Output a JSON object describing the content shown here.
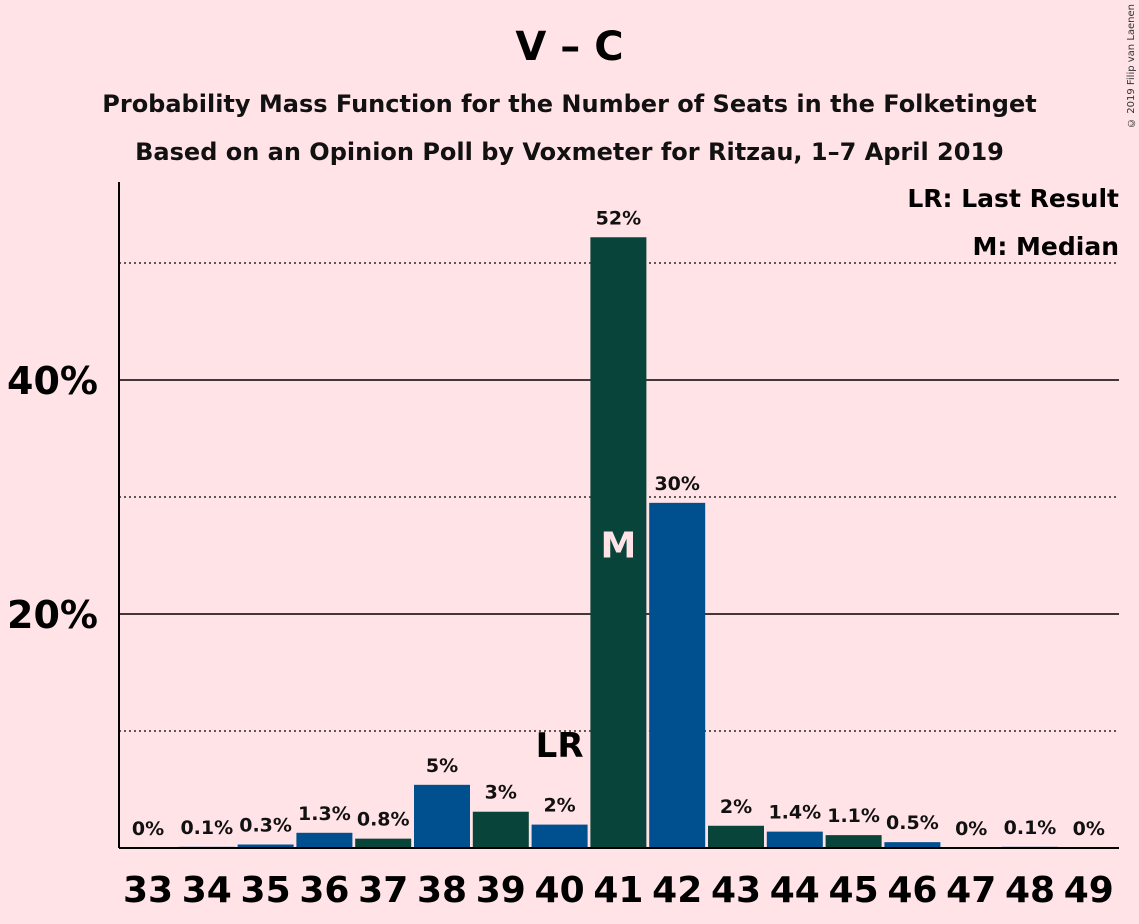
{
  "chart_data": {
    "type": "bar",
    "title": "V – C",
    "subtitle_1": "Probability Mass Function for the Number of Seats in the Folketinget",
    "subtitle_2": "Based on an Opinion Poll by Voxmeter for Ritzau, 1–7 April 2019",
    "copyright": "© 2019 Filip van Laenen",
    "legend": [
      "LR: Last Result",
      "M: Median"
    ],
    "categories": [
      "33",
      "34",
      "35",
      "36",
      "37",
      "38",
      "39",
      "40",
      "41",
      "42",
      "43",
      "44",
      "45",
      "46",
      "47",
      "48",
      "49"
    ],
    "values": [
      0,
      0.1,
      0.3,
      1.3,
      0.8,
      5.4,
      3.1,
      2.0,
      52.2,
      29.5,
      1.9,
      1.4,
      1.1,
      0.5,
      0,
      0.1,
      0
    ],
    "value_labels": [
      "0%",
      "0.1%",
      "0.3%",
      "1.3%",
      "0.8%",
      "5%",
      "3%",
      "2%",
      "52%",
      "30%",
      "2%",
      "1.4%",
      "1.1%",
      "0.5%",
      "0%",
      "0.1%",
      "0%"
    ],
    "bar_colors": [
      "#08443A",
      "#00508F",
      "#00508F",
      "#00508F",
      "#08443A",
      "#00508F",
      "#08443A",
      "#00508F",
      "#08443A",
      "#00508F",
      "#08443A",
      "#00508F",
      "#08443A",
      "#00508F",
      "#08443A",
      "#00508F",
      "#08443A"
    ],
    "y_ticks": [
      {
        "value": 20,
        "label": "20%"
      },
      {
        "value": 40,
        "label": "40%"
      }
    ],
    "minor_gridlines": [
      10,
      30,
      50
    ],
    "ylim": [
      0,
      57
    ],
    "last_result_seat": "40",
    "last_result_label": "LR",
    "median_seat": "41",
    "median_label": "M",
    "colors": {
      "background": "#FFE3E7",
      "dark_green": "#08443A",
      "blue": "#00508F"
    }
  }
}
